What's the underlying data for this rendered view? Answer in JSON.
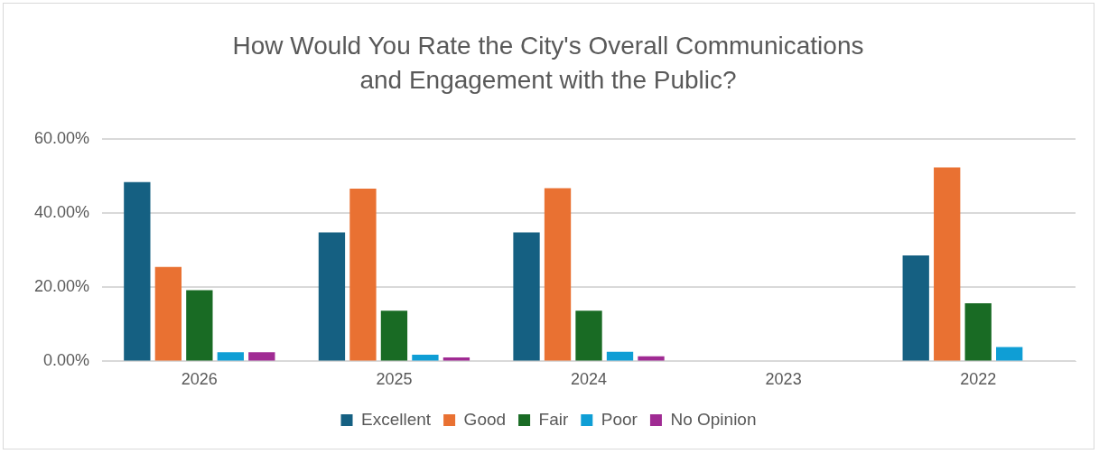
{
  "chart_data": {
    "type": "bar",
    "title": "How Would You Rate the City's Overall Communications and Engagement with the Public?",
    "categories": [
      "2026",
      "2025",
      "2024",
      "2023",
      "2022"
    ],
    "series": [
      {
        "name": "Excellent",
        "color": "#156082",
        "values": [
          48.4,
          34.8,
          34.8,
          null,
          28.6
        ]
      },
      {
        "name": "Good",
        "color": "#e97132",
        "values": [
          25.5,
          46.6,
          46.7,
          null,
          52.3
        ]
      },
      {
        "name": "Fair",
        "color": "#196b24",
        "values": [
          19.2,
          13.7,
          13.7,
          null,
          15.7
        ]
      },
      {
        "name": "Poor",
        "color": "#0f9ed5",
        "values": [
          2.5,
          1.8,
          2.6,
          null,
          3.9
        ]
      },
      {
        "name": "No Opinion",
        "color": "#a02b93",
        "values": [
          2.5,
          1.1,
          1.4,
          null,
          null
        ]
      }
    ],
    "ylim": [
      0,
      60
    ],
    "yticks": [
      {
        "value": 0,
        "label": "0.00%"
      },
      {
        "value": 20,
        "label": "20.00%"
      },
      {
        "value": 40,
        "label": "40.00%"
      },
      {
        "value": 60,
        "label": "60.00%"
      }
    ],
    "grid": "y",
    "legend": "bottom"
  }
}
